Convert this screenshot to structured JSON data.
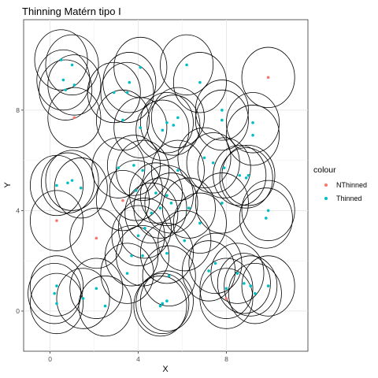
{
  "chart_data": {
    "type": "scatter",
    "title": "Thinning Matérn tipo I",
    "xlabel": "X",
    "ylabel": "Y",
    "xlim": [
      -1.2,
      11.7
    ],
    "ylim": [
      -1.6,
      11.6
    ],
    "x_ticks": [
      0,
      4,
      8
    ],
    "y_ticks": [
      0,
      4,
      8
    ],
    "x_tick_labels": [
      "0",
      "4",
      "8"
    ],
    "y_tick_labels": [
      "0",
      "4",
      "8"
    ],
    "grid": true,
    "legend": {
      "title": "colour",
      "position": "right",
      "entries": [
        {
          "label": "NThinned",
          "color": "#F8766D"
        },
        {
          "label": "Thinned",
          "color": "#00BFC4"
        }
      ]
    },
    "circle_radius": 1.2,
    "series": [
      {
        "name": "NThinned",
        "color": "#F8766D",
        "points": [
          [
            1.1,
            7.7
          ],
          [
            3.3,
            4.4
          ],
          [
            0.3,
            3.6
          ],
          [
            2.1,
            2.9
          ],
          [
            9.9,
            9.3
          ],
          [
            8.0,
            0.5
          ]
        ]
      },
      {
        "name": "Thinned",
        "color": "#00BFC4",
        "points": [
          [
            0.5,
            10.0
          ],
          [
            1.0,
            9.8
          ],
          [
            0.6,
            9.2
          ],
          [
            0.7,
            8.8
          ],
          [
            1.1,
            9.0
          ],
          [
            4.1,
            9.7
          ],
          [
            6.2,
            9.8
          ],
          [
            6.8,
            9.1
          ],
          [
            3.6,
            9.1
          ],
          [
            2.9,
            8.7
          ],
          [
            3.5,
            8.7
          ],
          [
            3.3,
            7.6
          ],
          [
            4.1,
            7.3
          ],
          [
            5.3,
            7.5
          ],
          [
            5.6,
            7.4
          ],
          [
            5.8,
            7.7
          ],
          [
            7.8,
            8.0
          ],
          [
            7.8,
            7.6
          ],
          [
            9.2,
            7.5
          ],
          [
            9.2,
            7.0
          ],
          [
            5.1,
            7.2
          ],
          [
            4.2,
            5.6
          ],
          [
            3.8,
            5.8
          ],
          [
            3.1,
            5.7
          ],
          [
            5.8,
            5.6
          ],
          [
            7.0,
            6.1
          ],
          [
            7.4,
            5.9
          ],
          [
            7.9,
            5.7
          ],
          [
            8.6,
            5.4
          ],
          [
            8.9,
            5.3
          ],
          [
            9.0,
            5.4
          ],
          [
            0.3,
            5.0
          ],
          [
            0.8,
            5.1
          ],
          [
            1.0,
            5.2
          ],
          [
            1.4,
            4.9
          ],
          [
            3.9,
            4.8
          ],
          [
            4.8,
            4.7
          ],
          [
            5.3,
            4.6
          ],
          [
            5.5,
            4.3
          ],
          [
            5.0,
            4.1
          ],
          [
            4.6,
            3.9
          ],
          [
            6.3,
            4.1
          ],
          [
            6.8,
            3.5
          ],
          [
            7.8,
            4.3
          ],
          [
            9.9,
            4.0
          ],
          [
            9.8,
            3.7
          ],
          [
            4.3,
            3.3
          ],
          [
            4.0,
            3.0
          ],
          [
            3.7,
            2.2
          ],
          [
            4.2,
            2.2
          ],
          [
            3.5,
            1.5
          ],
          [
            5.3,
            2.3
          ],
          [
            6.1,
            2.8
          ],
          [
            5.4,
            1.4
          ],
          [
            7.2,
            1.6
          ],
          [
            7.5,
            1.9
          ],
          [
            8.5,
            1.5
          ],
          [
            8.8,
            1.1
          ],
          [
            9.1,
            1.0
          ],
          [
            8.0,
            0.9
          ],
          [
            9.3,
            0.7
          ],
          [
            9.9,
            1.0
          ],
          [
            0.3,
            1.0
          ],
          [
            0.2,
            0.7
          ],
          [
            0.3,
            0.3
          ],
          [
            1.5,
            0.5
          ],
          [
            2.1,
            0.9
          ],
          [
            2.5,
            0.2
          ],
          [
            5.1,
            0.3
          ],
          [
            5.3,
            0.4
          ],
          [
            5.0,
            0.2
          ]
        ]
      }
    ]
  }
}
